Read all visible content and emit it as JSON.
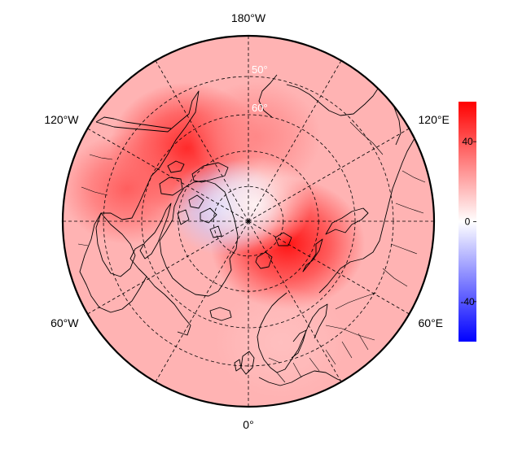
{
  "map": {
    "projection": "north-polar-stereographic",
    "center": "North Pole",
    "lon_labels": [
      {
        "lon": 180,
        "text": "180°W"
      },
      {
        "lon": -120,
        "text": "120°W"
      },
      {
        "lon": 120,
        "text": "120°E"
      },
      {
        "lon": -60,
        "text": "60°W"
      },
      {
        "lon": 60,
        "text": "60°E"
      },
      {
        "lon": 0,
        "text": "0°"
      }
    ],
    "lat_labels": [
      {
        "lat": 50,
        "text": "50°"
      },
      {
        "lat": 60,
        "text": "60°"
      }
    ],
    "graticule": {
      "latitudes": [
        50,
        60,
        70,
        80
      ],
      "meridian_step_deg": 30,
      "style": "dashed"
    },
    "field": {
      "background_value": 18,
      "features": [
        {
          "name": "warm-anomaly-barents-kara",
          "lon": 60,
          "lat": 77,
          "value": 55
        },
        {
          "name": "warm-anomaly-alaska-yukon",
          "lon": -140,
          "lat": 63,
          "value": 50
        },
        {
          "name": "warm-anomaly-chukotka",
          "lon": 175,
          "lat": 66,
          "value": 28
        },
        {
          "name": "warm-anomaly-west-canada",
          "lon": -105,
          "lat": 55,
          "value": 38
        },
        {
          "name": "cool-anomaly-canadian-archipelago",
          "lon": -120,
          "lat": 82,
          "value": -12
        },
        {
          "name": "near-zero-central-arctic",
          "lon": 160,
          "lat": 85,
          "value": 3
        },
        {
          "name": "mild-europe",
          "lon": 15,
          "lat": 55,
          "value": 15
        }
      ]
    }
  },
  "colorbar": {
    "min": -60,
    "max": 60,
    "ticks": [
      {
        "value": 40,
        "label": "40"
      },
      {
        "value": 0,
        "label": "0"
      },
      {
        "value": -40,
        "label": "-40"
      }
    ],
    "colors": {
      "low": "#0000ff",
      "mid": "#ffffff",
      "high": "#ff0000"
    }
  }
}
